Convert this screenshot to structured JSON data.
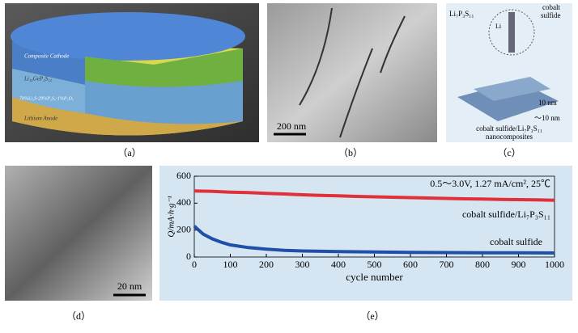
{
  "panels": {
    "a": {
      "caption": "（a）",
      "layers": [
        "Composite Cathode",
        "Li₁₀GeP₂S₁₂",
        "70%Li₂S-29%P₂S₅-1%P₂O₅",
        "Lithium Anode"
      ]
    },
    "b": {
      "caption": "（b）",
      "scale": "200 nm"
    },
    "c": {
      "caption": "（c）",
      "label_top": "Li₇P₃S₁₁",
      "label_cobalt": "cobalt",
      "label_sulfide": "sulfide",
      "label_li": "Li",
      "thick1": "10 nm",
      "thick2": "～10 nm",
      "composite1": "cobalt sulfide/Li₇P₃S₁₁",
      "composite2": "nanocomposites"
    },
    "d": {
      "caption": "（d）",
      "scale": "20 nm"
    },
    "e": {
      "caption": "（e）"
    }
  },
  "chart_data": {
    "type": "line",
    "ylabel": "Q/mA·h·g⁻¹",
    "xlabel": "cycle number",
    "annotation": "0.5～3.0V, 1.27 mA/cm², 25℃",
    "xlim": [
      0,
      1000
    ],
    "xticks": [
      0,
      100,
      200,
      300,
      400,
      500,
      600,
      700,
      800,
      900,
      1000
    ],
    "ylim": [
      0,
      600
    ],
    "yticks": [
      0,
      200,
      400,
      600
    ],
    "series": [
      {
        "name": "cobalt sulfide/Li₇P₃S₁₁",
        "color": "#e0303a",
        "x": [
          0,
          50,
          100,
          150,
          200,
          250,
          300,
          350,
          400,
          450,
          500,
          550,
          600,
          650,
          700,
          750,
          800,
          850,
          900,
          950,
          1000
        ],
        "values": [
          490,
          488,
          482,
          478,
          472,
          468,
          462,
          458,
          455,
          450,
          447,
          444,
          441,
          438,
          435,
          432,
          430,
          428,
          426,
          424,
          422
        ]
      },
      {
        "name": "cobalt sulfide",
        "color": "#1f4fa8",
        "x": [
          0,
          10,
          25,
          50,
          75,
          100,
          150,
          200,
          250,
          300,
          400,
          500,
          600,
          700,
          800,
          900,
          1000
        ],
        "values": [
          230,
          205,
          170,
          135,
          110,
          90,
          70,
          58,
          50,
          45,
          40,
          37,
          35,
          33,
          32,
          31,
          30
        ]
      }
    ]
  }
}
